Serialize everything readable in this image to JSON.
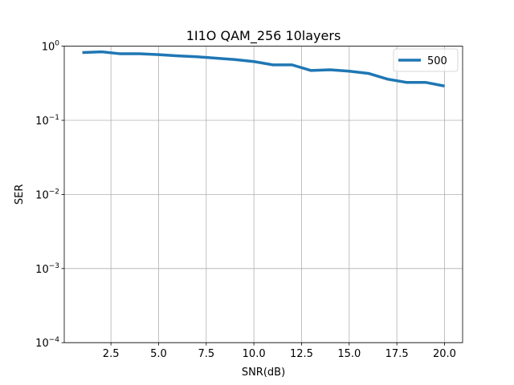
{
  "chart_data": {
    "type": "line",
    "title": "1I1O QAM_256 10layers",
    "xlabel": "SNR(dB)",
    "ylabel": "SER",
    "yscale": "log",
    "xlim": [
      0.05,
      20.95
    ],
    "ylim": [
      0.0001,
      1
    ],
    "xticks": [
      2.5,
      5.0,
      7.5,
      10.0,
      12.5,
      15.0,
      17.5,
      20.0
    ],
    "xtick_labels": [
      "2.5",
      "5.0",
      "7.5",
      "10.0",
      "12.5",
      "15.0",
      "17.5",
      "20.0"
    ],
    "yticks": [
      0.0001,
      0.001,
      0.01,
      0.1,
      1
    ],
    "ytick_base": "10",
    "ytick_exponents": [
      "−4",
      "−3",
      "−2",
      "−1",
      "0"
    ],
    "grid": true,
    "legend_position": "top-right",
    "color": "#1f77b4",
    "x": [
      1,
      2,
      3,
      4,
      5,
      6,
      7,
      8,
      9,
      10,
      11,
      12,
      13,
      14,
      15,
      16,
      17,
      18,
      19,
      20
    ],
    "series": [
      {
        "name": "500",
        "values": [
          0.82,
          0.84,
          0.79,
          0.79,
          0.77,
          0.74,
          0.72,
          0.69,
          0.66,
          0.62,
          0.56,
          0.56,
          0.47,
          0.48,
          0.46,
          0.43,
          0.36,
          0.325,
          0.325,
          0.29
        ]
      }
    ]
  }
}
